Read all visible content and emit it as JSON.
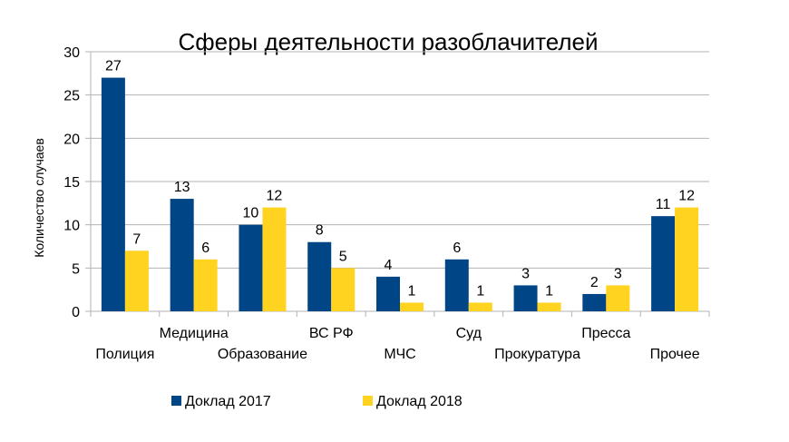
{
  "chart_data": {
    "type": "bar",
    "title": "Сферы деятельности разоблачителей",
    "xlabel": "",
    "ylabel": "Количество случаев",
    "ylim": [
      0,
      30
    ],
    "yticks": [
      0,
      5,
      10,
      15,
      20,
      25,
      30
    ],
    "grid": true,
    "legend_position": "bottom",
    "categories": [
      "Полиция",
      "Медицина",
      "Образование",
      "ВС РФ",
      "МЧС",
      "Суд",
      "Прокуратура",
      "Пресса",
      "Прочее"
    ],
    "series": [
      {
        "name": "Доклад 2017",
        "color": "#004586",
        "values": [
          27,
          13,
          10,
          8,
          4,
          6,
          3,
          2,
          11
        ]
      },
      {
        "name": "Доклад 2018",
        "color": "#ffd320",
        "values": [
          7,
          6,
          12,
          5,
          1,
          1,
          1,
          3,
          12
        ]
      }
    ]
  }
}
